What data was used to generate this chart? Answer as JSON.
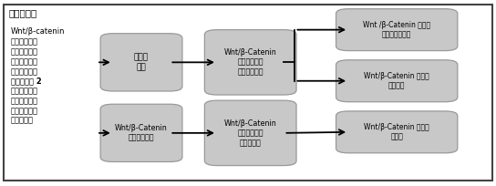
{
  "title": "文章特点一",
  "left_text_line1": "Wnt/β-catenin",
  "left_text_bold": "信号通路通过\n直接作用于骨\n肉瘾细胞和间\n接调节骨肉瘾\n细胞活性的 2\n种方式，在骨\n肉瘾生长和转\n移过程中起着\n重要作用。",
  "col1_box1_text": "肆瘾微\n环境",
  "col1_box2_text": "Wnt/β-Catenin\n典型信号通路",
  "col2_box1_text": "Wnt/β-Catenin\n信号通路在骨\n肉瘾中的作用",
  "col2_box2_text": "Wnt/β-Catenin\n通路与肆瘾微\n环境的关系",
  "col3_box1_text": "Wnt /β-Catenin 通路，\n血管生成和缺氧",
  "col3_box2_text": "Wnt/β-Catenin 途径与\n免疫系统",
  "col3_box3_text": "Wnt/β-Catenin 通路与\n骨重建",
  "box_facecolor": "#c8c8c8",
  "box_edgecolor": "#999999",
  "background_color": "#ffffff",
  "border_color": "#444444",
  "arrow_color": "#000000",
  "text_color": "#000000",
  "title_color": "#000000"
}
